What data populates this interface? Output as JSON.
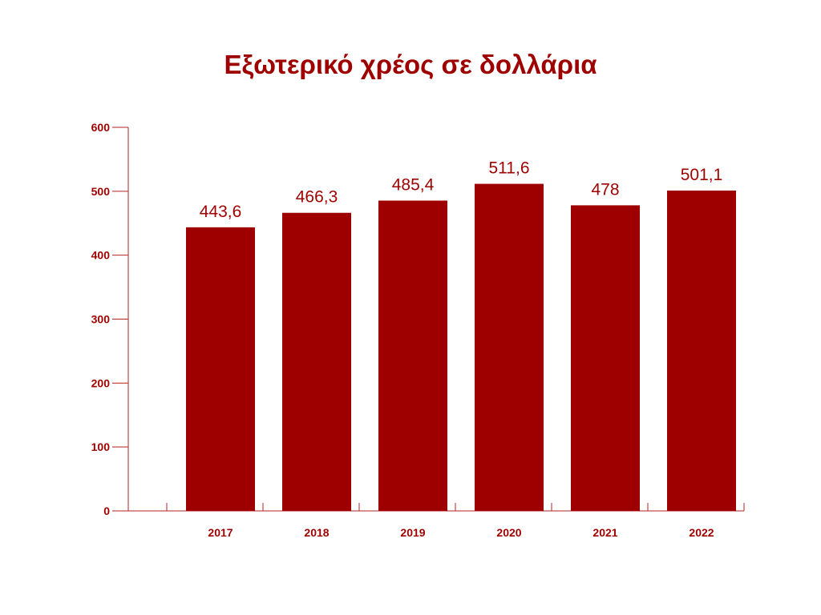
{
  "chart_data": {
    "type": "bar",
    "title": "Εξωτερικό χρέος σε δολλάρια",
    "categories": [
      "2017",
      "2018",
      "2019",
      "2020",
      "2021",
      "2022"
    ],
    "values": [
      443.6,
      466.3,
      485.4,
      511.6,
      478,
      501.1
    ],
    "value_labels": [
      "443,6",
      "466,3",
      "485,4",
      "511,6",
      "478",
      "501,1"
    ],
    "y_ticks": [
      0,
      100,
      200,
      300,
      400,
      500,
      600
    ],
    "ylim": [
      0,
      600
    ],
    "xlabel": "",
    "ylabel": "",
    "grid": false,
    "bar_color": "#9e0000",
    "text_color": "#9e0000",
    "axis_color": "#b22222"
  }
}
